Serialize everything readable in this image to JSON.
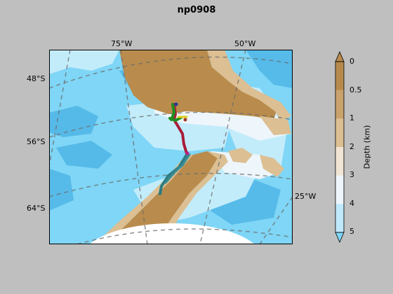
{
  "title": "np0908",
  "map": {
    "lon_labels": [
      "75°W",
      "50°W",
      "25°W"
    ],
    "lat_labels": [
      "48°S",
      "56°S",
      "64°S"
    ]
  },
  "colorbar": {
    "label": "Depth (km)",
    "ticks": [
      "0",
      "0.5",
      "1",
      "2",
      "3",
      "4",
      "5"
    ],
    "colors": [
      "#b78a4c",
      "#c9a26c",
      "#dcbf93",
      "#f0e4d4",
      "#eef6fb",
      "#bfe9fb",
      "#7fd6f6"
    ]
  }
}
